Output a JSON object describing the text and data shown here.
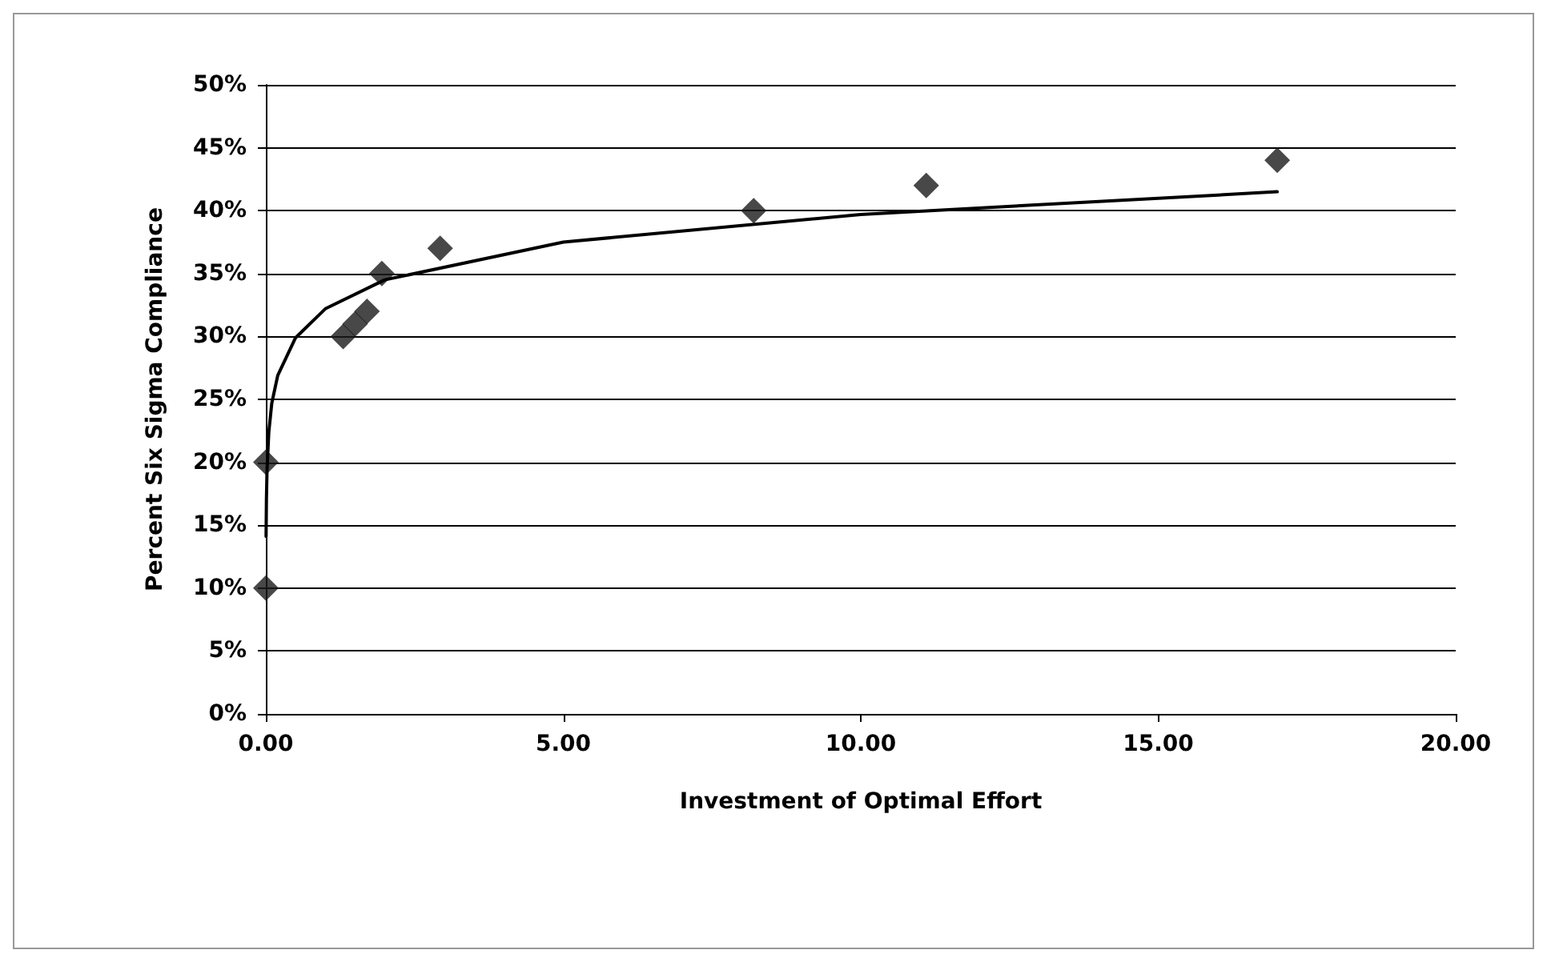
{
  "chart_data": {
    "type": "scatter",
    "xlabel": "Investment of Optimal Effort",
    "ylabel": "Percent Six Sigma Compliance",
    "series": [
      {
        "color": "#1a1a1a",
        "marker": "diamond",
        "x": [
          0,
          0,
          1.3,
          1.5,
          1.7,
          1.95,
          2.93,
          8.2,
          11.1,
          17
        ],
        "values": [
          10,
          20,
          30,
          31,
          32,
          35,
          37,
          40,
          42,
          44
        ]
      },
      {
        "type": "line",
        "color": "#000000",
        "marker": "none",
        "x": [
          0.004,
          0.01,
          0.02,
          0.05,
          0.1,
          0.2,
          0.5,
          1,
          2,
          5,
          10,
          17
        ],
        "values": [
          14.1,
          17.1,
          19.4,
          22.4,
          24.7,
          26.9,
          29.9,
          32.2,
          34.5,
          37.5,
          39.7,
          41.5
        ]
      }
    ],
    "xlim": [
      0,
      20
    ],
    "xticks": [
      {
        "value": 0,
        "label": "0.00"
      },
      {
        "value": 5,
        "label": "5.00"
      },
      {
        "value": 10,
        "label": "10.00"
      },
      {
        "value": 15,
        "label": "15.00"
      },
      {
        "value": 20,
        "label": "20.00"
      }
    ],
    "ylim": [
      0,
      50
    ],
    "yticks": [
      {
        "value": 0,
        "label": "0%"
      },
      {
        "value": 5,
        "label": "5%"
      },
      {
        "value": 10,
        "label": "10%"
      },
      {
        "value": 15,
        "label": "15%"
      },
      {
        "value": 20,
        "label": "20%"
      },
      {
        "value": 25,
        "label": "25%"
      },
      {
        "value": 30,
        "label": "30%"
      },
      {
        "value": 35,
        "label": "35%"
      },
      {
        "value": 40,
        "label": "40%"
      },
      {
        "value": 45,
        "label": "45%"
      },
      {
        "value": 50,
        "label": "50%"
      }
    ],
    "grid": "y"
  }
}
